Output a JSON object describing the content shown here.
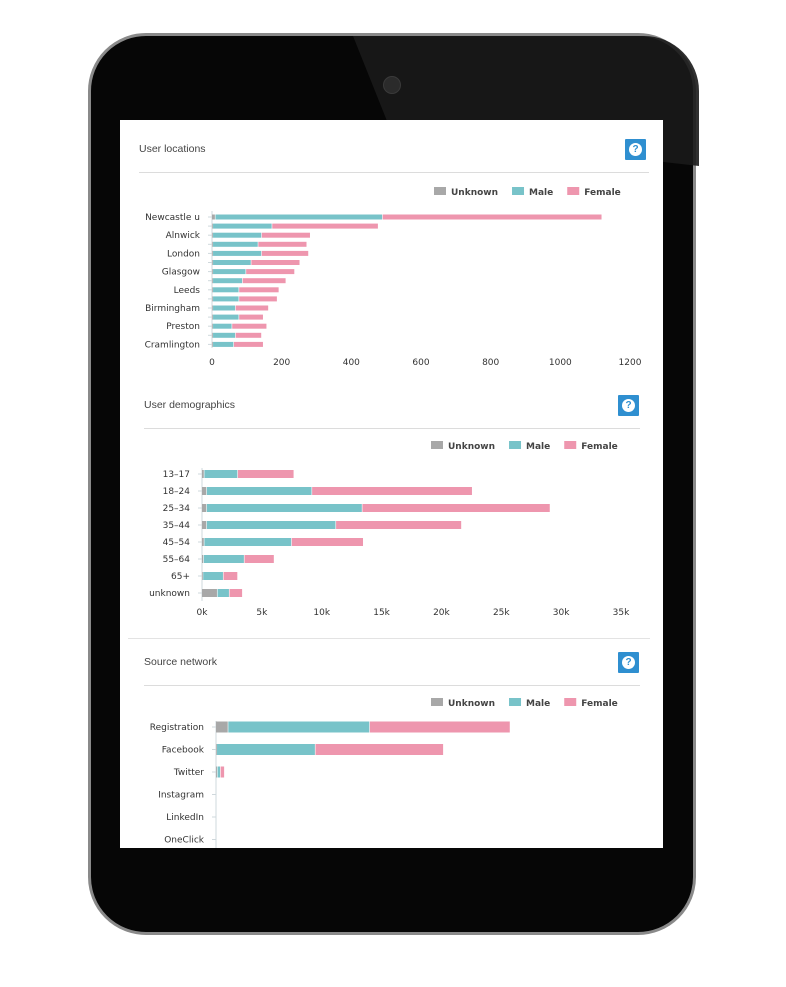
{
  "colors": {
    "unknown": "#a8a8a8",
    "male": "#78c3c9",
    "female": "#ee96ae",
    "help": "#2f8fd0"
  },
  "panels": [
    {
      "title": "User locations",
      "help_icon": "question-icon",
      "help_label": "?"
    },
    {
      "title": "User demographics",
      "help_icon": "question-icon",
      "help_label": "?"
    },
    {
      "title": "Source network",
      "help_icon": "question-icon",
      "help_label": "?"
    }
  ],
  "chart_data": [
    {
      "type": "bar",
      "orientation": "horizontal",
      "stacked": true,
      "legend": [
        "Unknown",
        "Male",
        "Female"
      ],
      "legend_position": "top-right",
      "categories": [
        "Newcastle u",
        "",
        "Alnwick",
        "",
        "London",
        "",
        "Glasgow",
        "",
        "Leeds",
        "",
        "Birmingham",
        "",
        "Preston",
        "",
        "Cramlington"
      ],
      "series": [
        {
          "name": "Unknown",
          "values": [
            10,
            3,
            3,
            3,
            3,
            3,
            3,
            3,
            3,
            3,
            3,
            3,
            3,
            3,
            3
          ]
        },
        {
          "name": "Male",
          "values": [
            480,
            170,
            140,
            130,
            140,
            110,
            95,
            85,
            75,
            75,
            65,
            75,
            55,
            65,
            60
          ]
        },
        {
          "name": "Female",
          "values": [
            630,
            305,
            140,
            140,
            135,
            140,
            140,
            125,
            115,
            110,
            95,
            70,
            100,
            75,
            85
          ]
        }
      ],
      "xticks": [
        "0",
        "200",
        "400",
        "600",
        "800",
        "1000",
        "1200"
      ],
      "xlim": [
        0,
        1200
      ],
      "grid": false
    },
    {
      "type": "bar",
      "orientation": "horizontal",
      "stacked": true,
      "legend": [
        "Unknown",
        "Male",
        "Female"
      ],
      "legend_position": "top-right",
      "categories": [
        "13–17",
        "18–24",
        "25–34",
        "35–44",
        "45–54",
        "55–64",
        "65+",
        "unknown"
      ],
      "series": [
        {
          "name": "Unknown",
          "values": [
            200,
            400,
            400,
            400,
            200,
            150,
            100,
            1300
          ]
        },
        {
          "name": "Male",
          "values": [
            2800,
            8800,
            13000,
            10800,
            7300,
            3400,
            1700,
            1000
          ]
        },
        {
          "name": "Female",
          "values": [
            4700,
            13400,
            15700,
            10500,
            6000,
            2500,
            1200,
            1100
          ]
        }
      ],
      "xticks": [
        "0k",
        "5k",
        "10k",
        "15k",
        "20k",
        "25k",
        "30k",
        "35k"
      ],
      "xlim": [
        0,
        35000
      ],
      "grid": false
    },
    {
      "type": "bar",
      "orientation": "horizontal",
      "stacked": true,
      "legend": [
        "Unknown",
        "Male",
        "Female"
      ],
      "legend_position": "top-right",
      "categories": [
        "Registration",
        "Facebook",
        "Twitter",
        "Instagram",
        "LinkedIn",
        "OneClick"
      ],
      "series": [
        {
          "name": "Unknown",
          "values": [
            1200,
            100,
            150,
            0,
            0,
            0
          ]
        },
        {
          "name": "Male",
          "values": [
            13800,
            9600,
            300,
            0,
            0,
            0
          ]
        },
        {
          "name": "Female",
          "values": [
            13700,
            12500,
            400,
            0,
            0,
            0
          ]
        }
      ],
      "xlim": [
        0,
        35000
      ],
      "grid": false
    }
  ]
}
